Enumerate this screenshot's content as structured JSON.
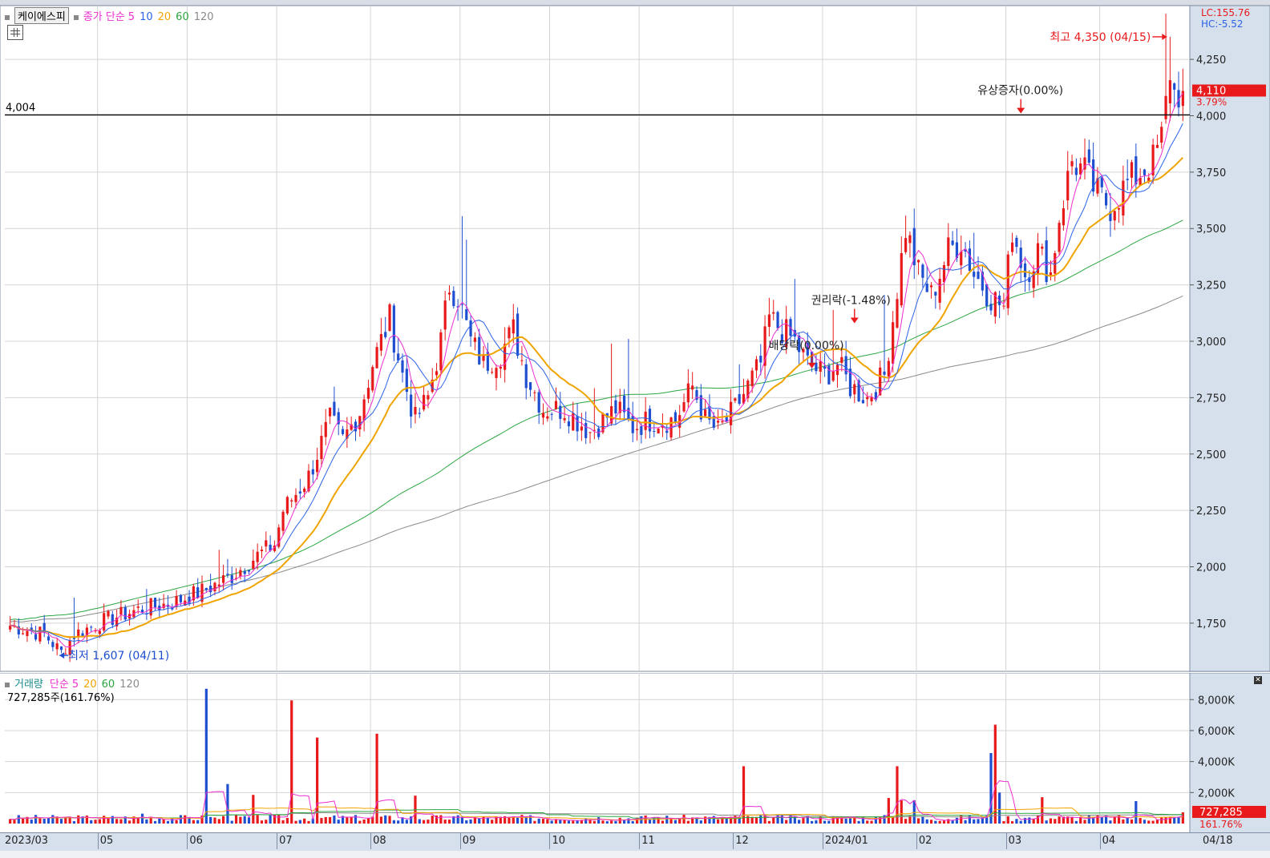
{
  "header": {
    "stock_name": "케이에스피",
    "ma_label": "종가 단순",
    "ma_periods": [
      "5",
      "10",
      "20",
      "60",
      "120"
    ],
    "lc": "LC:155.76",
    "hc": "HC:-5.52"
  },
  "volume_header": {
    "label": "거래량",
    "ma_label": "단순",
    "ma_periods": [
      "5",
      "20",
      "60",
      "120"
    ],
    "current": "727,285주(161.76%)"
  },
  "colors": {
    "up": "#e8191b",
    "down": "#1f4fd1",
    "ma5": "#ee2ecf",
    "ma10": "#2b63e8",
    "ma20": "#f0a400",
    "ma60": "#2aa640",
    "ma120": "#8a8a8a"
  },
  "chart_data": [
    {
      "type": "candlestick",
      "title": "케이에스피",
      "y_ticks": [
        1750,
        2000,
        2250,
        2500,
        2750,
        3000,
        3250,
        3500,
        3750,
        4000,
        4250
      ],
      "y_tick_labels": [
        "1,750",
        "2,000",
        "2,250",
        "2,500",
        "2,750",
        "3,000",
        "3,250",
        "3,500",
        "3,750",
        "4,000",
        "4,250"
      ],
      "ylim": [
        1540,
        4460
      ],
      "x_labels": [
        "2023/03",
        "05",
        "06",
        "07",
        "08",
        "09",
        "10",
        "11",
        "12",
        "2024/01",
        "02",
        "03",
        "04",
        "04/18"
      ],
      "grid": true,
      "reference_line": {
        "value": 4004,
        "label": "4,004"
      },
      "current_price": {
        "value": 4110,
        "label": "4,110",
        "change": "3.79%"
      },
      "high": {
        "value": 4350,
        "label": "최고 4,350 (04/15)"
      },
      "low": {
        "value": 1607,
        "label": "최저 1,607 (04/11)"
      },
      "events": [
        {
          "label": "권리락(-1.48%)",
          "month": "2024/01"
        },
        {
          "label": "배당락(0.00%)",
          "month": "12"
        },
        {
          "label": "유상증자(0.00%)",
          "month": "03"
        }
      ],
      "path_anchors": [
        [
          0,
          1740
        ],
        [
          8,
          1700
        ],
        [
          12,
          1620
        ],
        [
          15,
          1700
        ],
        [
          22,
          1760
        ],
        [
          30,
          1810
        ],
        [
          38,
          1840
        ],
        [
          46,
          1900
        ],
        [
          52,
          1960
        ],
        [
          58,
          2050
        ],
        [
          62,
          2100
        ],
        [
          64,
          2250
        ],
        [
          70,
          2400
        ],
        [
          75,
          2650
        ],
        [
          78,
          2560
        ],
        [
          82,
          2690
        ],
        [
          85,
          2900
        ],
        [
          89,
          3100
        ],
        [
          92,
          2850
        ],
        [
          95,
          2650
        ],
        [
          98,
          2750
        ],
        [
          101,
          3000
        ],
        [
          103,
          3250
        ],
        [
          105,
          3200
        ],
        [
          108,
          3000
        ],
        [
          111,
          2900
        ],
        [
          115,
          2950
        ],
        [
          118,
          3050
        ],
        [
          121,
          2850
        ],
        [
          125,
          2700
        ],
        [
          130,
          2700
        ],
        [
          136,
          2600
        ],
        [
          142,
          2700
        ],
        [
          146,
          2620
        ],
        [
          150,
          2650
        ],
        [
          156,
          2650
        ],
        [
          160,
          2800
        ],
        [
          163,
          2650
        ],
        [
          166,
          2600
        ],
        [
          170,
          2700
        ],
        [
          173,
          2800
        ],
        [
          176,
          2900
        ],
        [
          178,
          3100
        ],
        [
          181,
          3050
        ],
        [
          184,
          3000
        ],
        [
          187,
          2900
        ],
        [
          191,
          2850
        ],
        [
          194,
          2900
        ],
        [
          197,
          2800
        ],
        [
          201,
          2750
        ],
        [
          205,
          2850
        ],
        [
          207,
          3100
        ],
        [
          210,
          3500
        ],
        [
          213,
          3300
        ],
        [
          216,
          3200
        ],
        [
          220,
          3400
        ],
        [
          223,
          3450
        ],
        [
          226,
          3300
        ],
        [
          230,
          3200
        ],
        [
          233,
          3150
        ],
        [
          235,
          3500
        ],
        [
          238,
          3300
        ],
        [
          241,
          3400
        ],
        [
          244,
          3300
        ],
        [
          246,
          3550
        ],
        [
          249,
          3800
        ],
        [
          252,
          3750
        ],
        [
          255,
          3650
        ],
        [
          258,
          3600
        ],
        [
          262,
          3700
        ],
        [
          265,
          3750
        ],
        [
          268,
          3800
        ],
        [
          270,
          3900
        ],
        [
          272,
          4200
        ],
        [
          273,
          4100
        ],
        [
          275,
          4110
        ]
      ],
      "ma_seeds": {
        "ma20": 1730,
        "ma60": 1785,
        "ma120": 1770
      },
      "ma_trend": {
        "ma60": 3530,
        "ma120": 3180
      }
    },
    {
      "type": "bar",
      "title": "거래량",
      "y_ticks": [
        2000,
        4000,
        6000,
        8000
      ],
      "y_tick_labels": [
        "2,000K",
        "4,000K",
        "6,000K",
        "8,000K"
      ],
      "ylim": [
        0,
        9100
      ],
      "current_volume": {
        "value": 727,
        "label": "727,285",
        "ratio": "161.76%"
      },
      "spikes": [
        [
          31,
          640
        ],
        [
          46,
          8700
        ],
        [
          51,
          2550
        ],
        [
          57,
          1850
        ],
        [
          66,
          7950
        ],
        [
          72,
          5550
        ],
        [
          86,
          5800
        ],
        [
          95,
          1800
        ],
        [
          172,
          3700
        ],
        [
          206,
          1650
        ],
        [
          208,
          3700
        ],
        [
          209,
          1500
        ],
        [
          212,
          1500
        ],
        [
          230,
          4550
        ],
        [
          231,
          6380
        ],
        [
          232,
          2000
        ],
        [
          242,
          1700
        ],
        [
          264,
          1450
        ]
      ]
    }
  ]
}
